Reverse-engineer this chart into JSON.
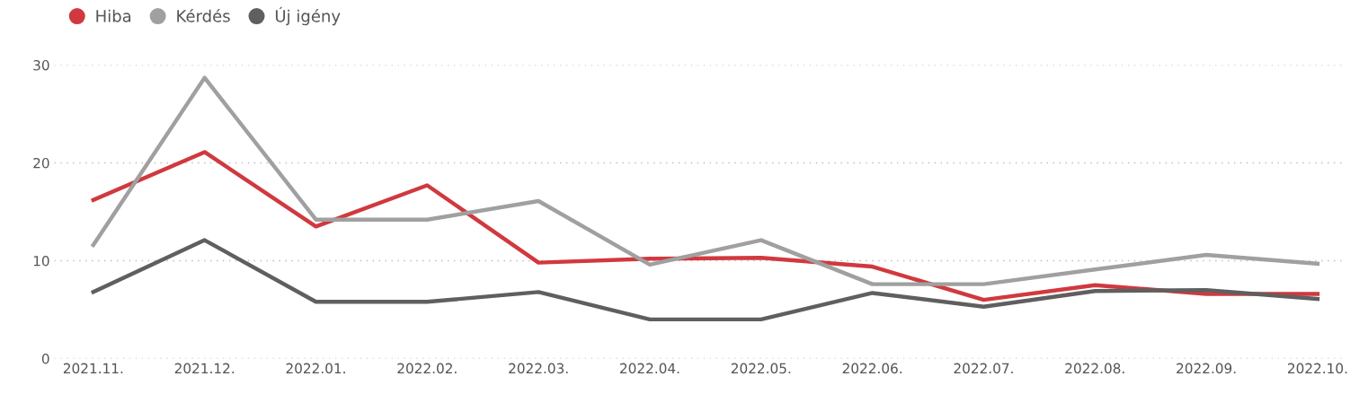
{
  "chart_data": {
    "type": "line",
    "categories": [
      "2021.11.",
      "2021.12.",
      "2022.01.",
      "2022.02.",
      "2022.03.",
      "2022.04.",
      "2022.05.",
      "2022.06.",
      "2022.07.",
      "2022.08.",
      "2022.09.",
      "2022.10."
    ],
    "series": [
      {
        "name": "Hiba",
        "color": "#d0393f",
        "values": [
          16.2,
          21.1,
          13.5,
          17.7,
          9.8,
          10.2,
          10.3,
          9.4,
          6.0,
          7.5,
          6.6,
          6.6
        ]
      },
      {
        "name": "Kérdés",
        "color": "#a0a0a0",
        "values": [
          11.6,
          28.7,
          14.2,
          14.2,
          16.1,
          9.6,
          12.1,
          7.6,
          7.6,
          9.1,
          10.6,
          9.7
        ]
      },
      {
        "name": "Új igény",
        "color": "#5f5f5f",
        "values": [
          6.8,
          12.1,
          5.8,
          5.8,
          6.8,
          4.0,
          4.0,
          6.7,
          5.3,
          6.9,
          7.0,
          6.1
        ]
      }
    ],
    "ylim": [
      0,
      30
    ],
    "yticks": [
      0,
      10,
      20,
      30
    ],
    "grid": "y",
    "legend": "top left",
    "marker": "none",
    "line_style": "solid"
  }
}
